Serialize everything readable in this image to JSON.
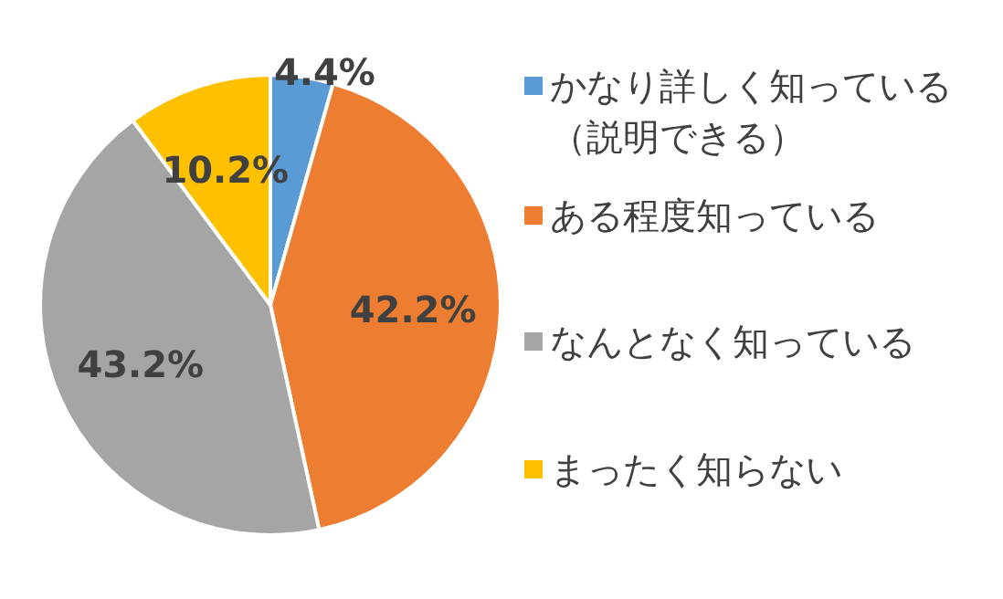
{
  "chart_data": {
    "type": "pie",
    "categories": [
      "かなり詳しく知っている（説明できる）",
      "ある程度知っている",
      "なんとなく知っている",
      "まったく知らない"
    ],
    "values": [
      4.4,
      42.2,
      43.2,
      10.2
    ],
    "colors": [
      "#5b9bd5",
      "#ed7d31",
      "#a5a5a5",
      "#ffc000"
    ],
    "value_labels": [
      "4.4%",
      "42.2%",
      "43.2%",
      "10.2%"
    ],
    "legend": "right"
  }
}
